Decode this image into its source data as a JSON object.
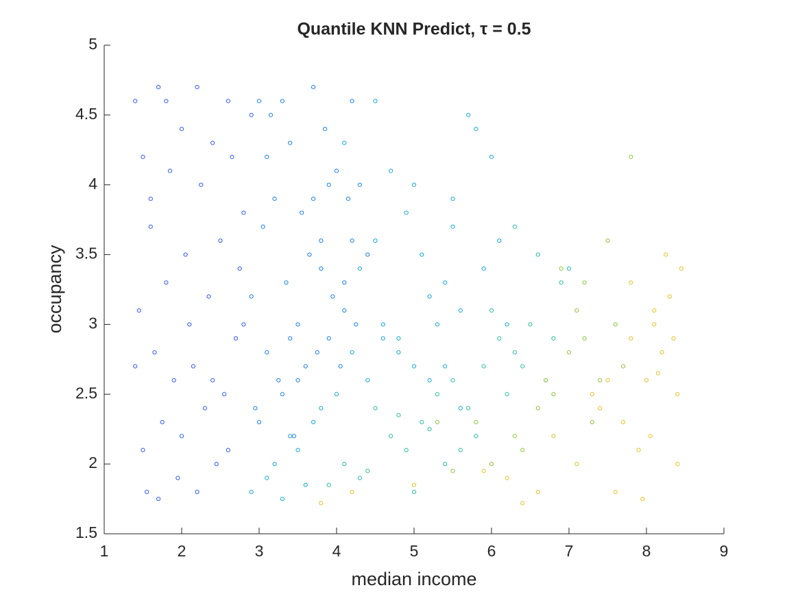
{
  "chart_data": {
    "type": "scatter",
    "title": "Quantile KNN Predict, τ = 0.5",
    "x_label": "median income",
    "y_label": "occupancy",
    "xlim": [
      1,
      9
    ],
    "xticks": [
      1,
      2,
      3,
      4,
      5,
      6,
      7,
      8,
      9
    ],
    "ylim": [
      1.5,
      5
    ],
    "yticks": [
      1.5,
      2,
      2.5,
      3,
      3.5,
      4,
      4.5,
      5
    ],
    "grid": false,
    "series": [
      {
        "color": "#3358f0",
        "x": [
          1.4,
          1.5,
          1.6,
          1.7,
          1.8,
          1.9,
          2.0,
          2.1,
          2.2,
          2.3,
          2.4,
          2.5,
          2.6,
          2.7,
          2.8,
          1.45,
          1.55,
          1.65,
          1.75,
          1.85,
          1.95,
          2.05,
          2.15,
          2.25,
          2.35,
          2.45,
          2.55,
          2.65,
          2.75,
          2.9,
          1.4,
          1.6,
          1.8,
          2.0,
          2.2,
          2.4,
          2.6,
          2.8,
          1.5,
          1.7
        ],
        "values": [
          4.6,
          2.1,
          3.9,
          4.7,
          3.3,
          2.6,
          4.4,
          3.0,
          4.7,
          2.4,
          4.3,
          3.6,
          4.6,
          2.9,
          3.8,
          3.1,
          1.8,
          2.8,
          2.3,
          4.1,
          1.9,
          3.5,
          2.7,
          4.0,
          3.2,
          2.0,
          2.5,
          4.2,
          3.4,
          4.5,
          2.7,
          3.7,
          4.6,
          2.2,
          1.8,
          2.6,
          2.1,
          3.0,
          4.2,
          1.75
        ]
      },
      {
        "color": "#1a80e8",
        "x": [
          2.9,
          3.0,
          3.1,
          3.2,
          3.3,
          3.4,
          3.5,
          3.6,
          3.7,
          3.8,
          3.9,
          4.0,
          4.1,
          4.2,
          4.3,
          2.95,
          3.05,
          3.15,
          3.25,
          3.35,
          3.45,
          3.55,
          3.65,
          3.75,
          3.85,
          3.95,
          4.05,
          4.15,
          4.25,
          4.4,
          3.1,
          3.3,
          3.5,
          3.7,
          3.9,
          4.1,
          3.0,
          3.4,
          3.8,
          4.2
        ],
        "values": [
          3.2,
          4.6,
          2.8,
          3.9,
          2.5,
          4.3,
          3.0,
          2.7,
          4.7,
          3.4,
          2.9,
          4.1,
          3.1,
          3.6,
          4.0,
          2.4,
          3.7,
          4.5,
          2.6,
          3.3,
          2.2,
          3.8,
          3.5,
          2.8,
          4.4,
          3.2,
          2.7,
          3.9,
          3.0,
          3.5,
          4.2,
          4.6,
          2.6,
          3.9,
          4.0,
          3.3,
          2.3,
          2.9,
          3.6,
          4.6
        ]
      },
      {
        "color": "#14a8d6",
        "x": [
          2.9,
          3.1,
          3.3,
          3.5,
          3.7,
          4.0,
          4.2,
          4.4,
          4.6,
          4.8,
          5.0,
          5.2,
          5.4,
          5.6,
          5.8,
          4.1,
          4.3,
          4.5,
          4.7,
          4.9,
          5.1,
          5.3,
          5.5,
          5.7,
          3.2,
          3.4,
          3.6,
          3.8,
          4.5,
          5.0,
          5.5,
          6.0,
          6.2,
          4.8,
          5.2,
          5.9,
          6.1,
          4.6,
          5.4,
          5.6
        ],
        "values": [
          1.8,
          1.9,
          1.75,
          2.1,
          2.3,
          2.5,
          2.8,
          2.6,
          3.0,
          2.9,
          2.7,
          3.2,
          3.3,
          3.1,
          4.4,
          4.3,
          3.4,
          3.6,
          4.1,
          3.8,
          3.5,
          3.0,
          3.7,
          4.5,
          2.0,
          2.2,
          1.85,
          2.4,
          4.6,
          4.0,
          3.9,
          4.2,
          3.0,
          2.8,
          2.6,
          3.4,
          3.6,
          2.9,
          2.7,
          2.4
        ]
      },
      {
        "color": "#2cbba0",
        "x": [
          3.9,
          4.1,
          4.3,
          4.5,
          4.7,
          4.9,
          5.1,
          5.3,
          5.5,
          5.7,
          5.9,
          6.1,
          6.3,
          6.5,
          6.7,
          6.9,
          5.0,
          5.4,
          5.8,
          6.2,
          6.6,
          4.4,
          4.8,
          5.6,
          6.0,
          6.4,
          6.8,
          7.0,
          5.2,
          6.3
        ],
        "values": [
          1.85,
          2.0,
          1.9,
          2.4,
          2.2,
          2.1,
          2.3,
          2.5,
          2.6,
          2.4,
          2.7,
          2.9,
          2.8,
          3.0,
          2.6,
          3.3,
          1.8,
          2.0,
          2.2,
          2.5,
          3.5,
          1.95,
          2.35,
          2.1,
          3.1,
          2.7,
          2.9,
          3.4,
          2.25,
          3.7
        ]
      },
      {
        "color": "#8cc63c",
        "x": [
          5.3,
          5.5,
          5.8,
          6.0,
          6.3,
          6.6,
          6.8,
          7.0,
          7.2,
          7.4,
          7.6,
          6.9,
          7.1,
          7.3,
          7.5,
          6.4,
          6.7,
          7.7,
          7.8,
          7.2
        ],
        "values": [
          2.3,
          1.95,
          2.3,
          2.0,
          2.2,
          2.4,
          2.5,
          2.8,
          2.9,
          2.6,
          3.0,
          3.4,
          3.1,
          2.3,
          3.6,
          2.1,
          2.6,
          2.7,
          4.2,
          3.3
        ]
      },
      {
        "color": "#e6c22a",
        "x": [
          3.8,
          4.2,
          5.0,
          5.9,
          6.2,
          6.4,
          6.8,
          7.1,
          7.4,
          7.6,
          7.8,
          7.9,
          8.0,
          8.1,
          8.2,
          8.3,
          8.4,
          8.45,
          7.95,
          8.05,
          8.15,
          8.25,
          8.35,
          7.5,
          7.7,
          8.1,
          8.4,
          6.6,
          7.3,
          7.8
        ],
        "values": [
          1.72,
          1.8,
          1.85,
          1.95,
          1.9,
          1.72,
          2.2,
          2.0,
          2.4,
          1.8,
          2.9,
          2.1,
          2.6,
          3.0,
          2.8,
          3.2,
          2.5,
          3.4,
          1.75,
          2.2,
          2.65,
          3.5,
          2.9,
          2.6,
          2.3,
          3.1,
          2.0,
          1.8,
          2.5,
          3.3
        ]
      }
    ]
  }
}
